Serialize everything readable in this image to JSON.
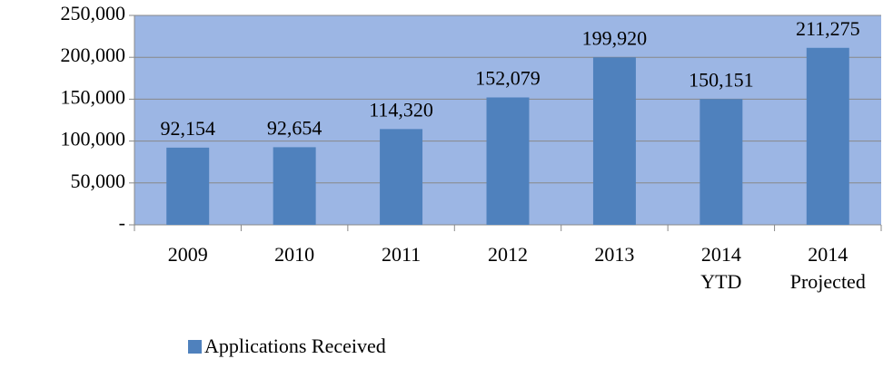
{
  "chart_data": {
    "type": "bar",
    "categories": [
      "2009",
      "2010",
      "2011",
      "2012",
      "2013",
      "2014 YTD",
      "2014 Projected"
    ],
    "series": [
      {
        "name": "Applications Received",
        "color": "#4f81bd",
        "values": [
          92154,
          92654,
          114320,
          152079,
          199920,
          150151,
          211275
        ],
        "value_labels": [
          "92,154",
          "92,654",
          "114,320",
          "152,079",
          "199,920",
          "150,151",
          "211,275"
        ]
      }
    ],
    "ylim": [
      0,
      250000
    ],
    "yticks": [
      {
        "value": 0,
        "label": "-"
      },
      {
        "value": 50000,
        "label": "50,000"
      },
      {
        "value": 100000,
        "label": "100,000"
      },
      {
        "value": 150000,
        "label": "150,000"
      },
      {
        "value": 200000,
        "label": "200,000"
      },
      {
        "value": 250000,
        "label": "250,000"
      }
    ],
    "grid": true,
    "legend": "bottom",
    "plot_background": "#9cb6e4"
  }
}
